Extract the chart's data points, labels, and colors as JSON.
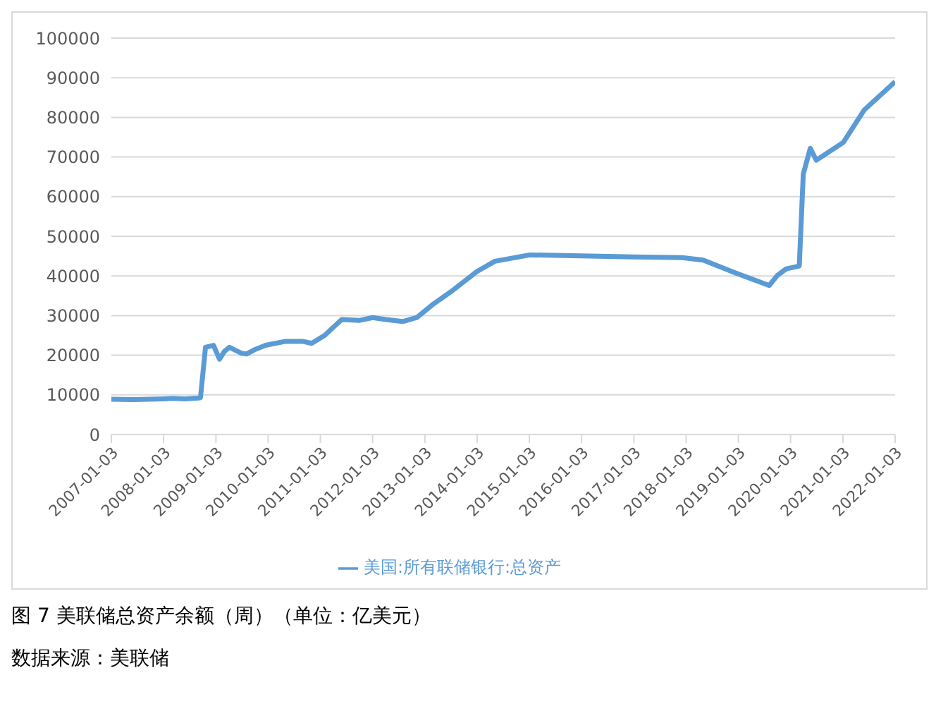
{
  "chart_data": {
    "type": "line",
    "title": "图 7 美联储总资产余额（周）（单位：亿美元）",
    "annotations": [
      "数据来源：美联储"
    ],
    "xlim": [
      "2007-01-03",
      "2022-01-03"
    ],
    "xticks": [
      "2007-01-03",
      "2008-01-03",
      "2009-01-03",
      "2010-01-03",
      "2011-01-03",
      "2012-01-03",
      "2013-01-03",
      "2014-01-03",
      "2015-01-03",
      "2016-01-03",
      "2017-01-03",
      "2018-01-03",
      "2019-01-03",
      "2020-01-03",
      "2021-01-03",
      "2022-01-03"
    ],
    "ylim": [
      0,
      100000
    ],
    "yticks": [
      0,
      10000,
      20000,
      30000,
      40000,
      50000,
      60000,
      70000,
      80000,
      90000,
      100000
    ],
    "grid": "y",
    "legend": "bottom",
    "marker": "none",
    "line_style": "solid",
    "series": [
      {
        "name": "美国:所有联储银行:总资产",
        "color": "#5b9bd5",
        "x": [
          "2007-01-03",
          "2007-06-06",
          "2008-01-02",
          "2008-03-05",
          "2008-06-04",
          "2008-09-03",
          "2008-09-17",
          "2008-10-22",
          "2008-12-17",
          "2009-01-28",
          "2009-03-04",
          "2009-04-08",
          "2009-07-01",
          "2009-08-05",
          "2009-10-07",
          "2009-12-16",
          "2010-05-05",
          "2010-09-01",
          "2010-11-03",
          "2011-02-02",
          "2011-06-01",
          "2011-10-05",
          "2012-01-04",
          "2012-04-04",
          "2012-08-01",
          "2012-11-07",
          "2013-03-06",
          "2013-07-03",
          "2014-01-01",
          "2014-05-07",
          "2015-01-07",
          "2017-01-04",
          "2017-12-06",
          "2018-05-02",
          "2018-12-05",
          "2019-08-07",
          "2019-10-02",
          "2019-12-04",
          "2020-03-04",
          "2020-04-01",
          "2020-05-20",
          "2020-07-01",
          "2021-01-06",
          "2021-06-02",
          "2022-01-03"
        ],
        "values": [
          8900,
          8800,
          9000,
          9100,
          9000,
          9200,
          9300,
          22000,
          22500,
          19000,
          21000,
          22000,
          20500,
          20300,
          21500,
          22500,
          23500,
          23500,
          23000,
          25000,
          29000,
          28800,
          29500,
          29000,
          28500,
          29500,
          33000,
          36000,
          41100,
          43700,
          45300,
          44800,
          44600,
          44000,
          40900,
          37600,
          40100,
          41800,
          42500,
          65700,
          72200,
          69200,
          73700,
          81900,
          89000
        ]
      }
    ]
  }
}
